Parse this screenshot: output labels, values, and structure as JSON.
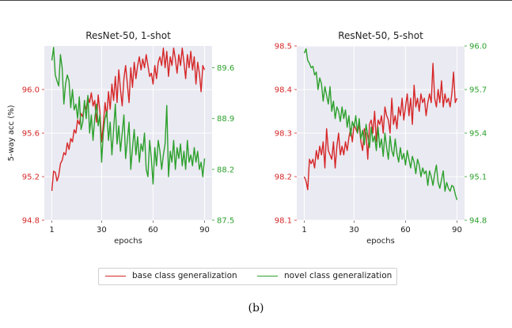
{
  "caption": "(b)",
  "colors": {
    "base": "#d62728",
    "novel": "#2ca02c",
    "panel_bg": "#eaeaf2",
    "grid": "#ffffff"
  },
  "legend": {
    "base_label": "base class generalization",
    "novel_label": "novel class generalization"
  },
  "chart_data": [
    {
      "type": "line",
      "title": "ResNet-50, 1-shot",
      "xlabel": "epochs",
      "ylabel": "5-way acc (%)",
      "xlim": [
        1,
        90
      ],
      "xticks": [
        "1",
        "30",
        "60",
        "90"
      ],
      "left_ylim": [
        94.8,
        96.4
      ],
      "left_yticks": [
        "94.8",
        "95.2",
        "95.6",
        "96.0"
      ],
      "right_ylim": [
        87.5,
        89.9
      ],
      "right_yticks": [
        "87.5",
        "88.2",
        "88.9",
        "89.6"
      ],
      "grid": true,
      "series": [
        {
          "name": "base class generalization",
          "axis": "left",
          "values": [
            95.07,
            95.25,
            95.24,
            95.16,
            95.21,
            95.32,
            95.35,
            95.42,
            95.4,
            95.51,
            95.45,
            95.55,
            95.52,
            95.63,
            95.6,
            95.72,
            95.68,
            95.78,
            95.75,
            95.86,
            95.82,
            95.93,
            95.88,
            95.97,
            95.85,
            95.9,
            95.7,
            95.95,
            95.8,
            95.52,
            95.68,
            95.88,
            95.75,
            95.98,
            95.82,
            96.05,
            95.9,
            96.12,
            95.88,
            96.18,
            96.0,
            95.85,
            96.1,
            96.22,
            96.05,
            95.88,
            96.2,
            96.02,
            96.25,
            96.1,
            96.22,
            96.3,
            96.18,
            96.28,
            96.2,
            96.32,
            96.22,
            96.12,
            96.15,
            96.05,
            96.22,
            96.1,
            96.25,
            96.3,
            96.22,
            96.38,
            96.2,
            96.35,
            96.12,
            96.3,
            96.22,
            96.38,
            96.28,
            96.15,
            96.32,
            96.22,
            96.38,
            96.25,
            96.1,
            96.32,
            96.2,
            96.35,
            96.18,
            96.3,
            96.05,
            96.25,
            96.15,
            95.98,
            96.22,
            96.18
          ]
        },
        {
          "name": "novel class generalization",
          "axis": "right",
          "values": [
            89.7,
            89.88,
            89.5,
            89.42,
            89.35,
            89.78,
            89.6,
            89.1,
            89.38,
            89.5,
            89.42,
            89.05,
            89.3,
            89.02,
            89.1,
            88.9,
            89.2,
            88.75,
            88.85,
            89.15,
            88.9,
            89.22,
            88.7,
            88.95,
            88.6,
            88.9,
            89.1,
            88.8,
            88.95,
            88.3,
            88.7,
            88.9,
            89.0,
            88.6,
            88.85,
            88.4,
            88.75,
            89.1,
            88.55,
            88.8,
            88.45,
            88.7,
            88.95,
            88.35,
            88.6,
            88.85,
            88.2,
            88.5,
            88.75,
            88.4,
            88.65,
            88.3,
            88.55,
            88.45,
            88.7,
            88.2,
            88.1,
            88.6,
            88.35,
            88.0,
            88.5,
            88.25,
            88.6,
            88.45,
            88.2,
            88.4,
            88.55,
            89.08,
            88.1,
            88.45,
            88.3,
            88.6,
            88.2,
            88.5,
            88.35,
            88.55,
            88.25,
            88.45,
            88.2,
            88.6,
            88.3,
            88.4,
            88.25,
            88.5,
            88.3,
            88.45,
            88.2,
            88.3,
            88.1,
            88.35
          ]
        }
      ]
    },
    {
      "type": "line",
      "title": "ResNet-50, 5-shot",
      "xlabel": "epochs",
      "ylabel": "",
      "xlim": [
        1,
        90
      ],
      "xticks": [
        "1",
        "30",
        "60",
        "90"
      ],
      "left_ylim": [
        98.1,
        98.5
      ],
      "left_yticks": [
        "98.1",
        "98.2",
        "98.3",
        "98.4",
        "98.5"
      ],
      "right_ylim": [
        94.8,
        96.0
      ],
      "right_yticks": [
        "94.8",
        "95.1",
        "95.4",
        "95.7",
        "96.0"
      ],
      "grid": true,
      "series": [
        {
          "name": "base class generalization",
          "axis": "left",
          "values": [
            98.2,
            98.19,
            98.17,
            98.24,
            98.23,
            98.24,
            98.22,
            98.26,
            98.24,
            98.27,
            98.25,
            98.28,
            98.22,
            98.31,
            98.26,
            98.25,
            98.24,
            98.28,
            98.22,
            98.27,
            98.3,
            98.25,
            98.27,
            98.25,
            98.28,
            98.26,
            98.29,
            98.31,
            98.28,
            98.32,
            98.31,
            98.3,
            98.32,
            98.28,
            98.26,
            98.31,
            98.3,
            98.24,
            98.32,
            98.33,
            98.3,
            98.35,
            98.28,
            98.33,
            98.32,
            98.34,
            98.3,
            98.36,
            98.34,
            98.33,
            98.3,
            98.38,
            98.32,
            98.34,
            98.31,
            98.36,
            98.34,
            98.38,
            98.33,
            98.36,
            98.39,
            98.34,
            98.38,
            98.32,
            98.41,
            98.36,
            98.38,
            98.35,
            98.39,
            98.37,
            98.38,
            98.34,
            98.37,
            98.39,
            98.37,
            98.46,
            98.38,
            98.36,
            98.4,
            98.37,
            98.42,
            98.36,
            98.39,
            98.37,
            98.38,
            98.36,
            98.39,
            98.44,
            98.37,
            98.38
          ]
        },
        {
          "name": "novel class generalization",
          "axis": "right",
          "values": [
            95.95,
            95.98,
            95.9,
            95.88,
            95.85,
            95.86,
            95.8,
            95.82,
            95.7,
            95.78,
            95.74,
            95.62,
            95.72,
            95.66,
            95.6,
            95.72,
            95.55,
            95.62,
            95.5,
            95.58,
            95.55,
            95.48,
            95.58,
            95.5,
            95.56,
            95.44,
            95.52,
            95.38,
            95.48,
            95.44,
            95.52,
            95.4,
            95.5,
            95.36,
            95.42,
            95.32,
            95.46,
            95.38,
            95.3,
            95.44,
            95.34,
            95.38,
            95.28,
            95.44,
            95.3,
            95.36,
            95.24,
            95.4,
            95.3,
            95.22,
            95.38,
            95.28,
            95.24,
            95.36,
            95.26,
            95.2,
            95.3,
            95.22,
            95.26,
            95.18,
            95.28,
            95.22,
            95.16,
            95.24,
            95.2,
            95.12,
            95.22,
            95.18,
            95.1,
            95.16,
            95.12,
            95.14,
            95.04,
            95.14,
            95.1,
            95.04,
            95.12,
            95.18,
            95.06,
            95.02,
            95.08,
            95.14,
            95.0,
            95.06,
            95.02,
            95.0,
            95.04,
            95.03,
            94.98,
            94.94
          ]
        }
      ]
    }
  ]
}
